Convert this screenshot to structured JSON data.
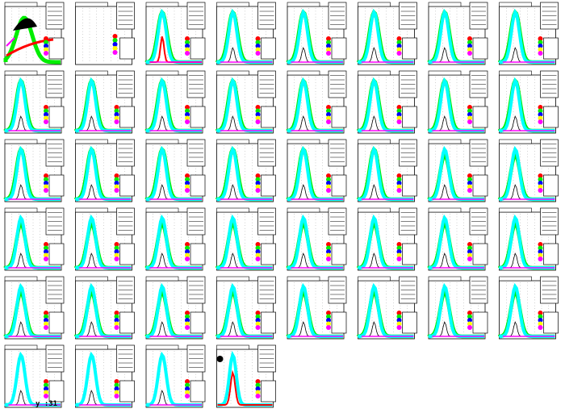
{
  "page": {
    "footer_text": "y :31",
    "colors": {
      "black": "#000000",
      "red": "#ff0000",
      "green": "#00ee00",
      "cyan": "#00ffff",
      "blue": "#0000ff",
      "magenta": "#ff00ff",
      "yellow": "#ffff00"
    }
  },
  "chart_data": [
    {
      "type": "line",
      "panel": 1,
      "style": "first"
    },
    {
      "type": "line",
      "panel": 2,
      "style": "empty"
    },
    {
      "type": "line",
      "panel": 3,
      "style": "peak_red"
    },
    {
      "type": "line",
      "panel": 4,
      "style": "peak"
    },
    {
      "type": "line",
      "panel": 5,
      "style": "peak"
    },
    {
      "type": "line",
      "panel": 6,
      "style": "peak"
    },
    {
      "type": "line",
      "panel": 7,
      "style": "peak"
    },
    {
      "type": "line",
      "panel": 8,
      "style": "peak"
    },
    {
      "type": "line",
      "panel": 9,
      "style": "peak"
    },
    {
      "type": "line",
      "panel": 10,
      "style": "peak"
    },
    {
      "type": "line",
      "panel": 11,
      "style": "peak"
    },
    {
      "type": "line",
      "panel": 12,
      "style": "peak"
    },
    {
      "type": "line",
      "panel": 13,
      "style": "peak"
    },
    {
      "type": "line",
      "panel": 14,
      "style": "peak"
    },
    {
      "type": "line",
      "panel": 15,
      "style": "peak"
    },
    {
      "type": "line",
      "panel": 16,
      "style": "peak"
    },
    {
      "type": "line",
      "panel": 17,
      "style": "peak"
    },
    {
      "type": "line",
      "panel": 18,
      "style": "peak"
    },
    {
      "type": "line",
      "panel": 19,
      "style": "peak"
    },
    {
      "type": "line",
      "panel": 20,
      "style": "peak"
    },
    {
      "type": "line",
      "panel": 21,
      "style": "peak"
    },
    {
      "type": "line",
      "panel": 22,
      "style": "peak"
    },
    {
      "type": "line",
      "panel": 23,
      "style": "peak_cyan"
    },
    {
      "type": "line",
      "panel": 24,
      "style": "peak_cyan"
    },
    {
      "type": "line",
      "panel": 25,
      "style": "peak_cyan"
    },
    {
      "type": "line",
      "panel": 26,
      "style": "peak_cyan"
    },
    {
      "type": "line",
      "panel": 27,
      "style": "peak_cyan"
    },
    {
      "type": "line",
      "panel": 28,
      "style": "peak_cyan"
    },
    {
      "type": "line",
      "panel": 29,
      "style": "peak_cyan"
    },
    {
      "type": "line",
      "panel": 30,
      "style": "peak_cyan"
    },
    {
      "type": "line",
      "panel": 31,
      "style": "peak_cyan"
    },
    {
      "type": "line",
      "panel": 32,
      "style": "peak_cyan"
    },
    {
      "type": "line",
      "panel": 33,
      "style": "peak_cyan"
    },
    {
      "type": "line",
      "panel": 34,
      "style": "peak_cyan"
    },
    {
      "type": "line",
      "panel": 35,
      "style": "peak_cyan"
    },
    {
      "type": "line",
      "panel": 36,
      "style": "peak_cyan"
    },
    {
      "type": "line",
      "panel": 37,
      "style": "peak_cyan"
    },
    {
      "type": "line",
      "panel": 38,
      "style": "peak_cyan"
    },
    {
      "type": "line",
      "panel": 39,
      "style": "peak_cyan"
    },
    {
      "type": "line",
      "panel": 40,
      "style": "peak_cyan"
    },
    {
      "type": "line",
      "panel": 41,
      "style": "peak_cyan"
    },
    {
      "type": "line",
      "panel": 42,
      "style": "peak_cyan"
    },
    {
      "type": "line",
      "panel": 43,
      "style": "peak_cyan"
    },
    {
      "type": "line",
      "panel": 44,
      "style": "last"
    }
  ]
}
